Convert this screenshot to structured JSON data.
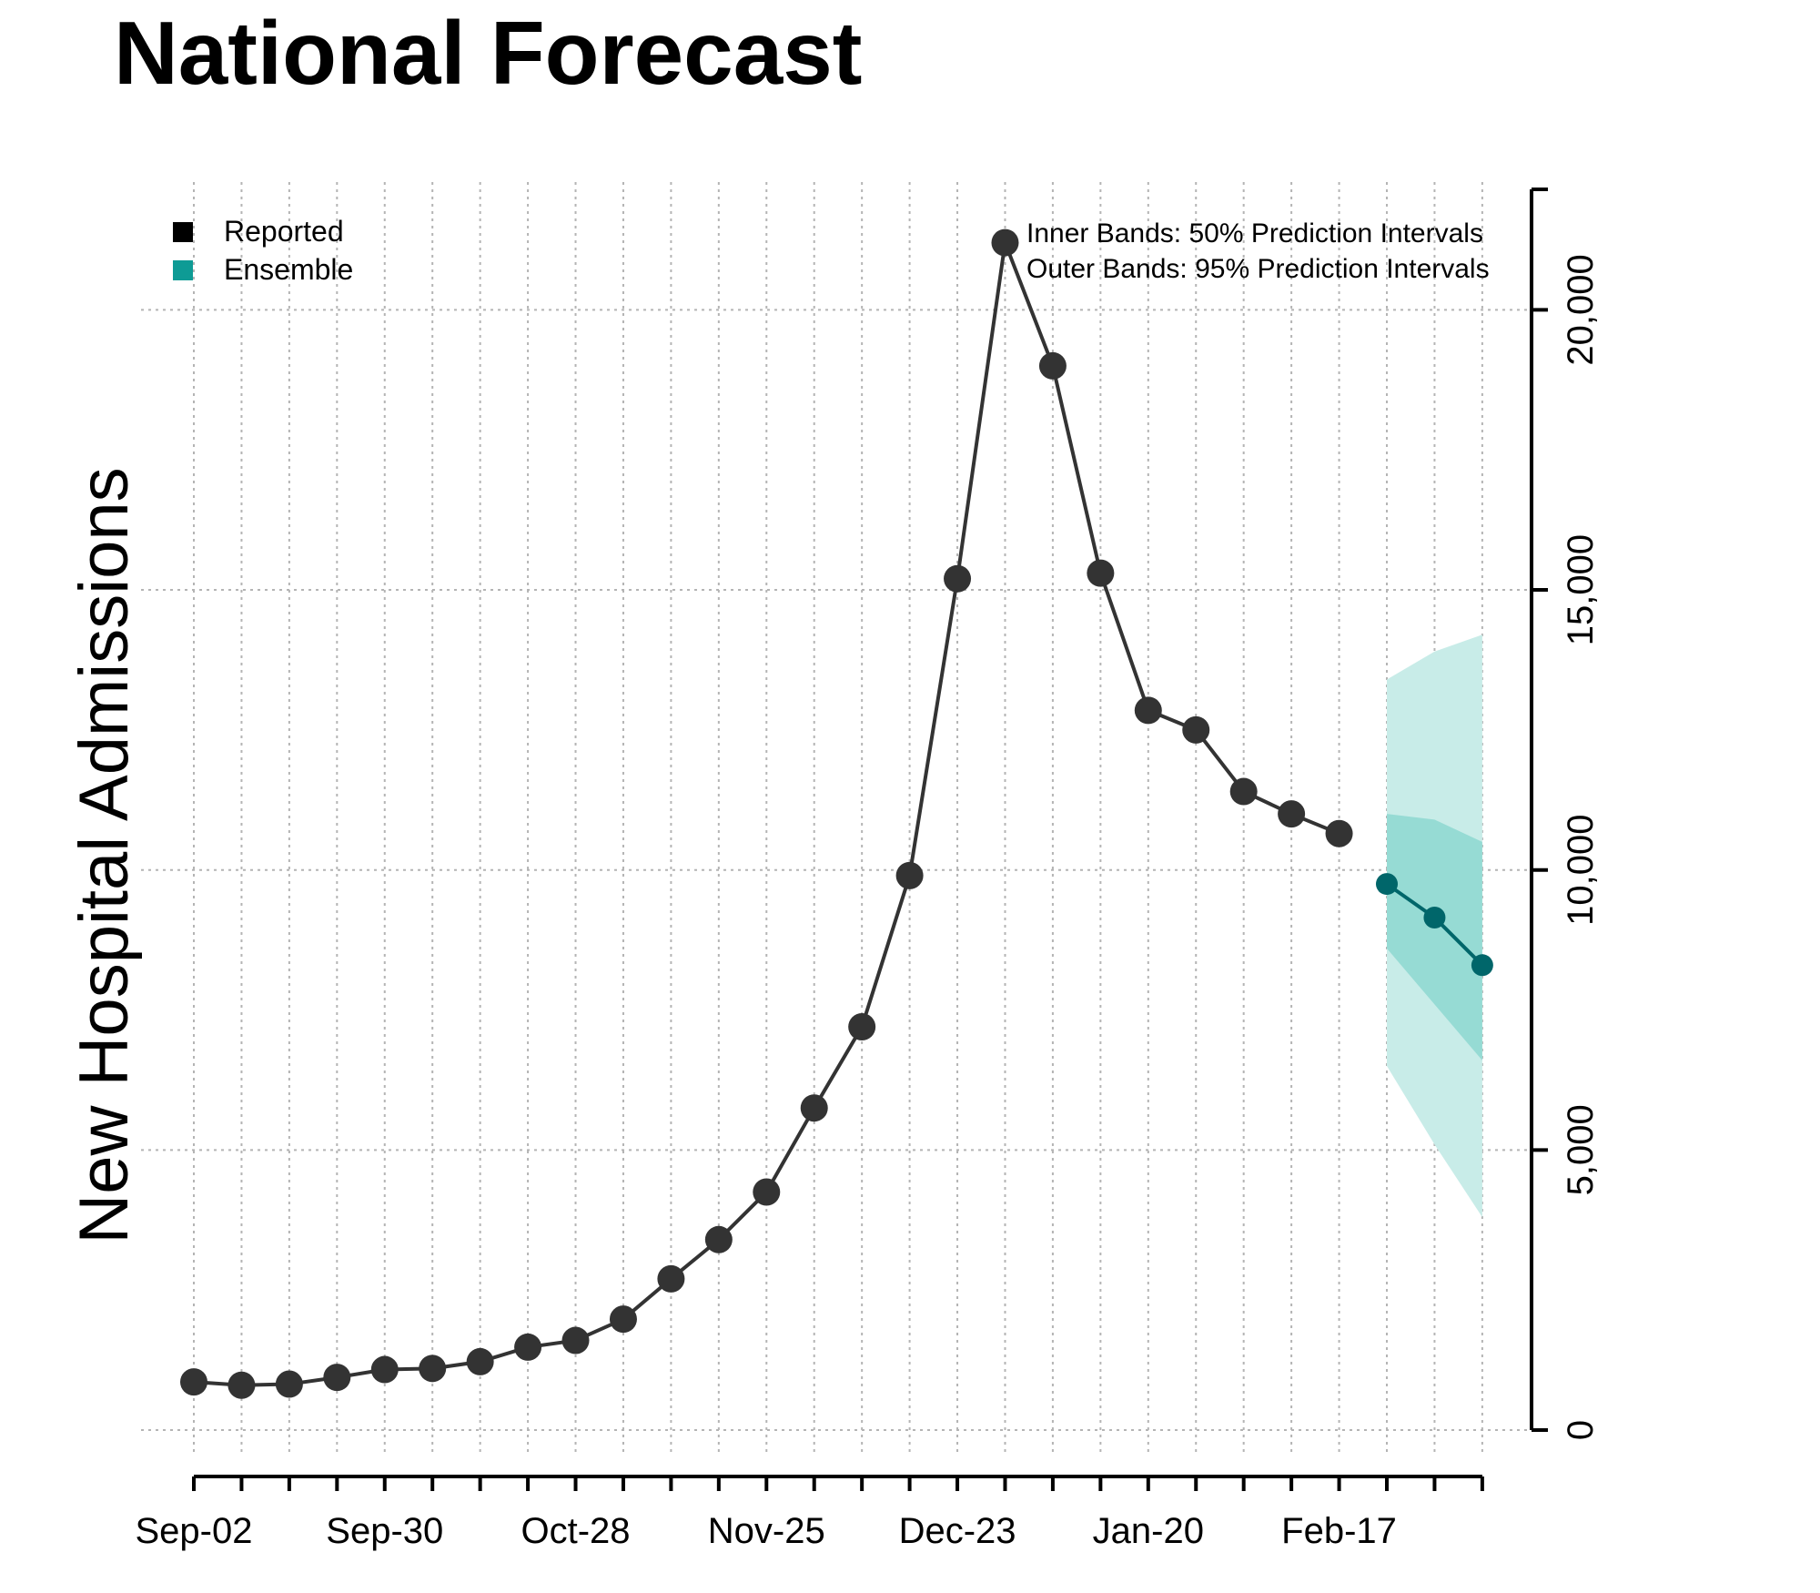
{
  "chart_data": {
    "type": "line",
    "title": "National Forecast",
    "xlabel": "",
    "ylabel": "New Hospital Admissions",
    "x_tick_labels": [
      "Sep-02",
      "Sep-30",
      "Oct-28",
      "Nov-25",
      "Dec-23",
      "Jan-20",
      "Feb-17"
    ],
    "x_tick_positions": [
      0,
      4,
      8,
      12,
      16,
      20,
      24
    ],
    "x_range": [
      0,
      27
    ],
    "ylim": [
      0,
      22000
    ],
    "y_ticks": [
      0,
      5000,
      10000,
      15000,
      20000
    ],
    "y_tick_labels": [
      "0",
      "5,000",
      "10,000",
      "15,000",
      "20,000"
    ],
    "grid": true,
    "legend": {
      "position": "top-left",
      "items": [
        {
          "label": "Reported",
          "color": "#000000"
        },
        {
          "label": "Ensemble",
          "color": "#0e9b95"
        }
      ]
    },
    "annotations": [
      "Inner Bands: 50% Prediction Intervals",
      "Outer Bands: 95% Prediction Intervals"
    ],
    "series": [
      {
        "name": "Reported",
        "color": "#333333",
        "x": [
          0,
          1,
          2,
          3,
          4,
          5,
          6,
          7,
          8,
          9,
          10,
          11,
          12,
          13,
          14,
          15,
          16,
          17,
          18,
          19,
          20,
          21,
          22,
          23,
          24
        ],
        "values": [
          860,
          800,
          820,
          940,
          1080,
          1100,
          1220,
          1480,
          1600,
          1980,
          2700,
          3400,
          4250,
          5750,
          7200,
          9900,
          15200,
          21200,
          19000,
          15300,
          12850,
          12500,
          11400,
          11000,
          10650
        ]
      },
      {
        "name": "Ensemble",
        "color": "#00666a",
        "x": [
          25,
          26,
          27
        ],
        "values": [
          9750,
          9150,
          8300
        ],
        "pi50_lower": [
          8600,
          7600,
          6600
        ],
        "pi50_upper": [
          11000,
          10900,
          10500
        ],
        "pi95_lower": [
          6500,
          5100,
          3800
        ],
        "pi95_upper": [
          13400,
          13900,
          14200
        ]
      }
    ],
    "colors": {
      "reported_line": "#333333",
      "reported_point": "#333333",
      "ensemble_point": "#00666a",
      "band_outer": "#c8ece8",
      "band_inner": "#96dbd4",
      "grid": "#b4b4b4"
    }
  }
}
